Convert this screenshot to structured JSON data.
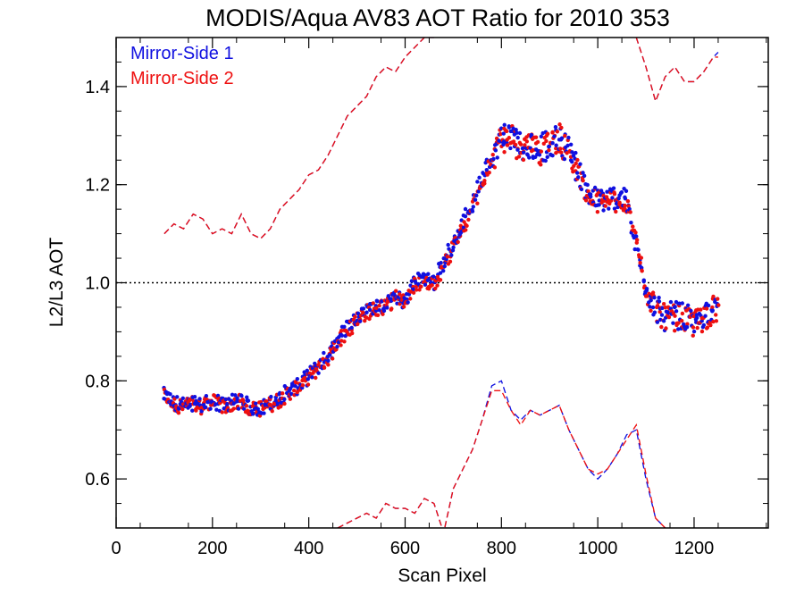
{
  "chart_data": {
    "type": "scatter",
    "title": "MODIS/Aqua AV83 AOT Ratio for 2010 353",
    "xlabel": "Scan Pixel",
    "ylabel": "L2/L3 AOT",
    "xlim": [
      0,
      1354
    ],
    "ylim": [
      0.5,
      1.5
    ],
    "x_ticks": [
      0,
      200,
      400,
      600,
      800,
      1000,
      1200
    ],
    "x_tick_labels": [
      "0",
      "200",
      "400",
      "600",
      "800",
      "1000",
      "1200"
    ],
    "y_ticks": [
      0.6,
      0.8,
      1.0,
      1.2,
      1.4
    ],
    "y_tick_labels": [
      "0.6",
      "0.8",
      "1.0",
      "1.2",
      "1.4"
    ],
    "reference_line": 1.0,
    "legend_position": "top-left",
    "series": [
      {
        "name": "Mirror-Side 1",
        "color": "#1010e0",
        "x": [
          100,
          120,
          140,
          160,
          180,
          200,
          220,
          240,
          260,
          280,
          300,
          320,
          340,
          360,
          380,
          400,
          420,
          440,
          460,
          480,
          500,
          520,
          540,
          560,
          580,
          600,
          620,
          640,
          660,
          680,
          700,
          720,
          740,
          760,
          780,
          800,
          820,
          840,
          860,
          880,
          900,
          920,
          940,
          960,
          980,
          1000,
          1020,
          1040,
          1060,
          1080,
          1100,
          1120,
          1140,
          1160,
          1180,
          1200,
          1220,
          1240,
          1250
        ],
        "mean": [
          0.77,
          0.755,
          0.75,
          0.755,
          0.75,
          0.76,
          0.75,
          0.755,
          0.76,
          0.745,
          0.745,
          0.755,
          0.765,
          0.78,
          0.79,
          0.81,
          0.83,
          0.85,
          0.88,
          0.91,
          0.93,
          0.945,
          0.95,
          0.955,
          0.975,
          0.96,
          1.0,
          1.01,
          1.0,
          1.04,
          1.08,
          1.12,
          1.16,
          1.21,
          1.26,
          1.3,
          1.3,
          1.28,
          1.285,
          1.275,
          1.28,
          1.3,
          1.27,
          1.23,
          1.18,
          1.17,
          1.17,
          1.175,
          1.165,
          1.08,
          0.99,
          0.95,
          0.93,
          0.935,
          0.93,
          0.92,
          0.935,
          0.95,
          0.945
        ],
        "upper": [
          1.1,
          1.12,
          1.11,
          1.14,
          1.13,
          1.1,
          1.11,
          1.1,
          1.14,
          1.1,
          1.09,
          1.11,
          1.15,
          1.17,
          1.19,
          1.22,
          1.23,
          1.26,
          1.3,
          1.34,
          1.36,
          1.38,
          1.42,
          1.44,
          1.43,
          1.46,
          1.48,
          1.5,
          1.5,
          null,
          null,
          null,
          null,
          null,
          null,
          null,
          null,
          null,
          null,
          null,
          null,
          null,
          null,
          null,
          null,
          null,
          null,
          null,
          null,
          1.5,
          1.44,
          1.37,
          1.42,
          1.44,
          1.41,
          1.41,
          1.43,
          1.46,
          1.47
        ],
        "lower": [
          null,
          null,
          null,
          null,
          null,
          null,
          null,
          null,
          null,
          null,
          null,
          null,
          null,
          null,
          null,
          null,
          null,
          null,
          0.5,
          0.51,
          0.52,
          0.53,
          0.52,
          0.55,
          0.54,
          0.54,
          0.53,
          0.56,
          0.55,
          0.49,
          0.58,
          0.62,
          0.66,
          0.72,
          0.79,
          0.8,
          0.74,
          0.72,
          0.74,
          0.73,
          0.74,
          0.75,
          0.7,
          0.66,
          0.62,
          0.6,
          0.62,
          0.65,
          0.69,
          0.7,
          0.6,
          0.52,
          0.5,
          null,
          null,
          null,
          null,
          null,
          null
        ]
      },
      {
        "name": "Mirror-Side 2",
        "color": "#ee1010",
        "x": [
          100,
          120,
          140,
          160,
          180,
          200,
          220,
          240,
          260,
          280,
          300,
          320,
          340,
          360,
          380,
          400,
          420,
          440,
          460,
          480,
          500,
          520,
          540,
          560,
          580,
          600,
          620,
          640,
          660,
          680,
          700,
          720,
          740,
          760,
          780,
          800,
          820,
          840,
          860,
          880,
          900,
          920,
          940,
          960,
          980,
          1000,
          1020,
          1040,
          1060,
          1080,
          1100,
          1120,
          1140,
          1160,
          1180,
          1200,
          1220,
          1240,
          1250
        ],
        "mean": [
          0.77,
          0.752,
          0.748,
          0.752,
          0.748,
          0.757,
          0.748,
          0.752,
          0.757,
          0.742,
          0.742,
          0.752,
          0.762,
          0.778,
          0.79,
          0.808,
          0.828,
          0.848,
          0.878,
          0.905,
          0.925,
          0.94,
          0.948,
          0.95,
          0.97,
          0.958,
          0.995,
          1.005,
          0.995,
          1.035,
          1.075,
          1.115,
          1.155,
          1.205,
          1.255,
          1.295,
          1.295,
          1.275,
          1.28,
          1.27,
          1.275,
          1.295,
          1.265,
          1.225,
          1.175,
          1.165,
          1.165,
          1.17,
          1.16,
          1.075,
          0.985,
          0.945,
          0.925,
          0.93,
          0.925,
          0.915,
          0.93,
          0.945,
          0.94
        ],
        "upper": [
          1.1,
          1.12,
          1.11,
          1.14,
          1.13,
          1.1,
          1.11,
          1.1,
          1.14,
          1.1,
          1.09,
          1.11,
          1.15,
          1.17,
          1.19,
          1.22,
          1.23,
          1.26,
          1.3,
          1.34,
          1.36,
          1.38,
          1.42,
          1.44,
          1.43,
          1.46,
          1.48,
          1.5,
          1.5,
          null,
          null,
          null,
          null,
          null,
          null,
          null,
          null,
          null,
          null,
          null,
          null,
          null,
          null,
          null,
          null,
          null,
          null,
          null,
          null,
          1.5,
          1.44,
          1.37,
          1.42,
          1.44,
          1.41,
          1.41,
          1.43,
          1.46,
          1.46
        ],
        "lower": [
          null,
          null,
          null,
          null,
          null,
          null,
          null,
          null,
          null,
          null,
          null,
          null,
          null,
          null,
          null,
          null,
          null,
          null,
          0.5,
          0.51,
          0.52,
          0.53,
          0.52,
          0.55,
          0.54,
          0.54,
          0.53,
          0.56,
          0.55,
          0.49,
          0.58,
          0.62,
          0.66,
          0.72,
          0.78,
          0.78,
          0.74,
          0.71,
          0.74,
          0.73,
          0.74,
          0.75,
          0.7,
          0.66,
          0.62,
          0.61,
          0.62,
          0.65,
          0.68,
          0.71,
          0.61,
          0.52,
          0.5,
          null,
          null,
          null,
          null,
          null,
          null
        ]
      }
    ]
  }
}
